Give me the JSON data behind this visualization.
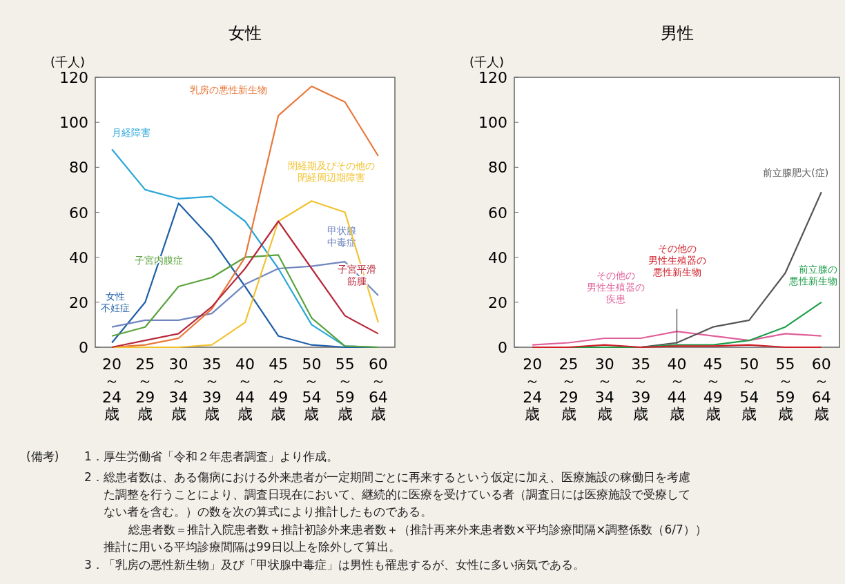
{
  "chart_data": [
    {
      "type": "line",
      "title": "女性",
      "ylabel": "(千人)",
      "categories": [
        "20～24歳",
        "25～29歳",
        "30～34歳",
        "35～39歳",
        "40～44歳",
        "45～49歳",
        "50～54歳",
        "55～59歳",
        "60～64歳"
      ],
      "ylim": [
        0,
        120
      ],
      "yticks": [
        0,
        20,
        40,
        60,
        80,
        100,
        120
      ],
      "grid": false,
      "marker": "none",
      "series": [
        {
          "name": "月経障害",
          "color": "#2ba6d9",
          "values": [
            88,
            70,
            66,
            67,
            56,
            35,
            10,
            0.5,
            0
          ]
        },
        {
          "name": "女性不妊症",
          "color": "#1f5fa8",
          "values": [
            2,
            20,
            64,
            48,
            27,
            5,
            1,
            0,
            0
          ]
        },
        {
          "name": "甲状腺中毒症",
          "color": "#6f86c0",
          "values": [
            9,
            12,
            12,
            15,
            28,
            35,
            36,
            38,
            23
          ]
        },
        {
          "name": "子宮内膜症",
          "color": "#5aa33c",
          "values": [
            5,
            9,
            27,
            31,
            40,
            41,
            13,
            0.5,
            0
          ]
        },
        {
          "name": "乳房の悪性新生物",
          "color": "#e8773a",
          "values": [
            0,
            1,
            4,
            17,
            40,
            103,
            116,
            109,
            85
          ]
        },
        {
          "name": "閉経期及びその他の閉経周辺期障害",
          "color": "#f2c230",
          "values": [
            0,
            0,
            0,
            1,
            11,
            56,
            65,
            60,
            11
          ]
        },
        {
          "name": "子宮平滑筋腫",
          "color": "#b8283a",
          "values": [
            0,
            3,
            6,
            18,
            35,
            56,
            35,
            14,
            6
          ]
        }
      ]
    },
    {
      "type": "line",
      "title": "男性",
      "ylabel": "(千人)",
      "categories": [
        "20～24歳",
        "25～29歳",
        "30～34歳",
        "35～39歳",
        "40～44歳",
        "45～49歳",
        "50～54歳",
        "55～59歳",
        "60～64歳"
      ],
      "ylim": [
        0,
        120
      ],
      "yticks": [
        0,
        20,
        40,
        60,
        80,
        100,
        120
      ],
      "grid": false,
      "marker": "none",
      "series": [
        {
          "name": "その他の男性生殖器の疾患",
          "color": "#e0609a",
          "values": [
            1,
            2,
            4,
            4,
            7,
            5,
            3,
            6,
            5
          ]
        },
        {
          "name": "前立腺肥大(症)",
          "color": "#555555",
          "values": [
            0,
            0,
            0,
            0,
            2,
            9,
            12,
            33,
            69
          ]
        },
        {
          "name": "前立腺の悪性新生物",
          "color": "#1e9e4a",
          "values": [
            0,
            0,
            0,
            0,
            1,
            1,
            3,
            9,
            20
          ]
        },
        {
          "name": "その他の男性生殖器の悪性新生物",
          "color": "#d0202a",
          "values": [
            0,
            0,
            1,
            0,
            0.5,
            0.5,
            1,
            0,
            0
          ]
        }
      ],
      "annotations": [
        "(備考)",
        "1．厚生労働省「令和２年患者調査」より作成。",
        "2．総患者数は、ある傷病における外来患者が一定期間ごとに再来するという仮定に加え、医療施設の稼働日を考慮",
        "た調整を行うことにより、調査日現在において、継続的に医療を受けている者（調査日には医療施設で受療して",
        "ない者を含む。）の数を次の算式により推計したものである。",
        "総患者数＝推計入院患者数＋推計初診外来患者数＋（推計再来外来患者数×平均診療間隔×調整係数（6/7））",
        "推計に用いる平均診療間隔は99日以上を除外して算出。",
        "3．「乳房の悪性新生物」及び「甲状腺中毒症」は男性も罹患するが、女性に多い病気である。"
      ]
    }
  ]
}
